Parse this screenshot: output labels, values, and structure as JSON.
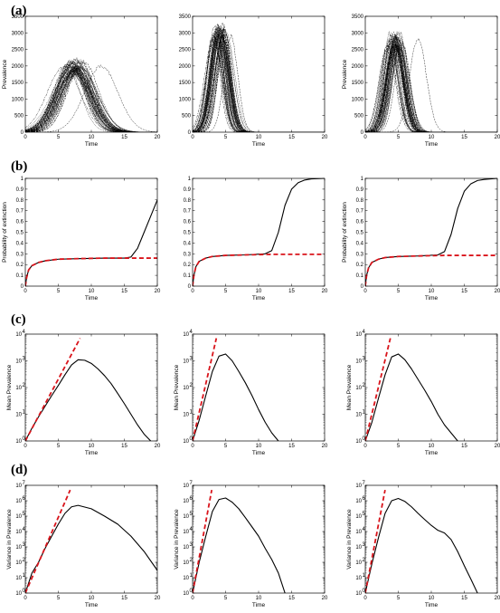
{
  "panel_labels": [
    "(a)",
    "(b)",
    "(c)",
    "(d)"
  ],
  "chart_data": [
    {
      "row": "a",
      "col": 0,
      "type": "line",
      "series_style": "many-realizations",
      "xlabel": "Time",
      "ylabel": "Prevalence",
      "xlim": [
        0,
        20
      ],
      "ylim": [
        0,
        3500
      ],
      "xticks": [
        0,
        5,
        10,
        15,
        20
      ],
      "yticks": [
        0,
        500,
        1000,
        1500,
        2000,
        2500,
        3000,
        3500
      ],
      "ensemble": {
        "peak_time_range": [
          5.5,
          11.5
        ],
        "peak_value_range": [
          1700,
          2200
        ],
        "typical_peak_time": 7.5,
        "typical_peak": 2050,
        "width": 2.4,
        "count": 55
      }
    },
    {
      "row": "a",
      "col": 1,
      "type": "line",
      "series_style": "many-realizations",
      "xlabel": "Time",
      "ylabel": "",
      "xlim": [
        0,
        20
      ],
      "ylim": [
        0,
        3500
      ],
      "xticks": [
        0,
        5,
        10,
        15,
        20
      ],
      "yticks": [
        0,
        500,
        1000,
        1500,
        2000,
        2500,
        3000,
        3500
      ],
      "ensemble": {
        "peak_time_range": [
          2.8,
          5.8
        ],
        "peak_value_range": [
          2700,
          3250
        ],
        "typical_peak_time": 4.0,
        "typical_peak": 3050,
        "width": 1.1,
        "count": 55
      }
    },
    {
      "row": "a",
      "col": 2,
      "type": "line",
      "series_style": "many-realizations",
      "xlabel": "Time",
      "ylabel": "Prevalence",
      "xlim": [
        0,
        20
      ],
      "ylim": [
        0,
        3500
      ],
      "xticks": [
        0,
        5,
        10,
        15,
        20
      ],
      "yticks": [
        0,
        500,
        1000,
        1500,
        2000,
        2500,
        3000,
        3500
      ],
      "ensemble": {
        "peak_time_range": [
          3.0,
          8.0
        ],
        "peak_value_range": [
          2500,
          3000
        ],
        "typical_peak_time": 4.5,
        "typical_peak": 2850,
        "width": 1.2,
        "count": 55
      }
    },
    {
      "row": "b",
      "col": 0,
      "type": "line",
      "xlabel": "Time",
      "ylabel": "Probability of extinction",
      "xlim": [
        0,
        20
      ],
      "ylim": [
        0,
        1
      ],
      "xticks": [
        0,
        5,
        10,
        15,
        20
      ],
      "yticks": [
        0,
        0.1,
        0.2,
        0.3,
        0.4,
        0.5,
        0.6,
        0.7,
        0.8,
        0.9,
        1
      ],
      "series": [
        {
          "style": "solid",
          "x": [
            0,
            0.2,
            0.5,
            1,
            2,
            3,
            5,
            8,
            12,
            15,
            16,
            17,
            18,
            19,
            20
          ],
          "y": [
            0,
            0.08,
            0.15,
            0.19,
            0.22,
            0.235,
            0.25,
            0.255,
            0.26,
            0.26,
            0.27,
            0.35,
            0.5,
            0.65,
            0.8
          ]
        },
        {
          "style": "dashed-red",
          "x": [
            0,
            0.2,
            0.5,
            1,
            2,
            3,
            5,
            8,
            12,
            16,
            20
          ],
          "y": [
            0,
            0.08,
            0.15,
            0.19,
            0.22,
            0.235,
            0.25,
            0.255,
            0.26,
            0.26,
            0.26
          ]
        }
      ]
    },
    {
      "row": "b",
      "col": 1,
      "type": "line",
      "xlabel": "Time",
      "ylabel": "",
      "xlim": [
        0,
        20
      ],
      "ylim": [
        0,
        1
      ],
      "xticks": [
        0,
        5,
        10,
        15,
        20
      ],
      "yticks": [
        0,
        0.1,
        0.2,
        0.3,
        0.4,
        0.5,
        0.6,
        0.7,
        0.8,
        0.9,
        1
      ],
      "series": [
        {
          "style": "solid",
          "x": [
            0,
            0.2,
            0.5,
            1,
            2,
            3,
            5,
            8,
            11,
            12,
            13,
            14,
            15,
            16,
            17,
            18,
            20
          ],
          "y": [
            0,
            0.1,
            0.18,
            0.23,
            0.26,
            0.275,
            0.285,
            0.29,
            0.3,
            0.33,
            0.5,
            0.75,
            0.9,
            0.96,
            0.985,
            0.995,
            1
          ]
        },
        {
          "style": "dashed-red",
          "x": [
            0,
            0.2,
            0.5,
            1,
            2,
            3,
            5,
            8,
            12,
            16,
            20
          ],
          "y": [
            0,
            0.1,
            0.18,
            0.23,
            0.26,
            0.275,
            0.285,
            0.29,
            0.295,
            0.295,
            0.295
          ]
        }
      ]
    },
    {
      "row": "b",
      "col": 2,
      "type": "line",
      "xlabel": "Time",
      "ylabel": "Probability of extinction",
      "xlim": [
        0,
        20
      ],
      "ylim": [
        0,
        1
      ],
      "xticks": [
        0,
        5,
        10,
        15,
        20
      ],
      "yticks": [
        0,
        0.1,
        0.2,
        0.3,
        0.4,
        0.5,
        0.6,
        0.7,
        0.8,
        0.9,
        1
      ],
      "series": [
        {
          "style": "solid",
          "x": [
            0,
            0.2,
            0.5,
            1,
            2,
            3,
            5,
            8,
            11,
            12,
            13,
            14,
            15,
            16,
            17,
            18,
            20
          ],
          "y": [
            0,
            0.1,
            0.17,
            0.22,
            0.25,
            0.265,
            0.275,
            0.28,
            0.29,
            0.32,
            0.48,
            0.72,
            0.88,
            0.95,
            0.98,
            0.99,
            1
          ]
        },
        {
          "style": "dashed-red",
          "x": [
            0,
            0.2,
            0.5,
            1,
            2,
            3,
            5,
            8,
            12,
            16,
            20
          ],
          "y": [
            0,
            0.1,
            0.17,
            0.22,
            0.25,
            0.265,
            0.275,
            0.28,
            0.285,
            0.285,
            0.285
          ]
        }
      ]
    },
    {
      "row": "c",
      "col": 0,
      "type": "line",
      "yscale": "log",
      "xlabel": "Time",
      "ylabel": "Mean Prevalence",
      "xlim": [
        0,
        20
      ],
      "ylim": [
        1,
        10000
      ],
      "xticks": [
        0,
        5,
        10,
        15,
        20
      ],
      "yticks": [
        1,
        10,
        100,
        1000,
        10000
      ],
      "series": [
        {
          "style": "solid",
          "x": [
            0,
            1,
            2,
            3,
            4,
            5,
            6,
            7,
            8,
            9,
            10,
            11,
            12,
            13,
            14,
            15,
            16,
            17,
            18,
            19
          ],
          "y": [
            1,
            3,
            8,
            20,
            50,
            120,
            300,
            700,
            1100,
            1050,
            800,
            500,
            280,
            140,
            60,
            25,
            10,
            4,
            1.8,
            1
          ]
        },
        {
          "style": "dashed-red",
          "x": [
            0,
            8.3
          ],
          "y": [
            1,
            7000
          ]
        }
      ]
    },
    {
      "row": "c",
      "col": 1,
      "type": "line",
      "yscale": "log",
      "xlabel": "Time",
      "ylabel": "Mean Prevalence",
      "xlim": [
        0,
        20
      ],
      "ylim": [
        1,
        10000
      ],
      "xticks": [
        0,
        5,
        10,
        15,
        20
      ],
      "yticks": [
        1,
        10,
        100,
        1000,
        10000
      ],
      "series": [
        {
          "style": "solid",
          "x": [
            0,
            1,
            2,
            3,
            4,
            5,
            6,
            7,
            8,
            9,
            10,
            11,
            12,
            13
          ],
          "y": [
            1,
            6,
            50,
            400,
            1500,
            1800,
            1000,
            400,
            150,
            50,
            15,
            5,
            2,
            1
          ]
        },
        {
          "style": "dashed-red",
          "x": [
            0,
            3.6
          ],
          "y": [
            1,
            7000
          ]
        }
      ]
    },
    {
      "row": "c",
      "col": 2,
      "type": "line",
      "yscale": "log",
      "xlabel": "Time",
      "ylabel": "Mean Prevalence",
      "xlim": [
        0,
        20
      ],
      "ylim": [
        1,
        10000
      ],
      "xticks": [
        0,
        5,
        10,
        15,
        20
      ],
      "yticks": [
        1,
        10,
        100,
        1000,
        10000
      ],
      "series": [
        {
          "style": "solid",
          "x": [
            0,
            1,
            2,
            3,
            4,
            5,
            6,
            7,
            8,
            9,
            10,
            11,
            12,
            13,
            14
          ],
          "y": [
            1,
            5,
            40,
            300,
            1400,
            1800,
            1100,
            500,
            200,
            80,
            30,
            10,
            4,
            2,
            1
          ]
        },
        {
          "style": "dashed-red",
          "x": [
            0,
            3.8
          ],
          "y": [
            1,
            7000
          ]
        }
      ]
    },
    {
      "row": "d",
      "col": 0,
      "type": "line",
      "yscale": "log",
      "xlabel": "Time",
      "ylabel": "Variance in Prevalence",
      "xlim": [
        0,
        20
      ],
      "ylim": [
        1,
        10000000
      ],
      "xticks": [
        0,
        5,
        10,
        15,
        20
      ],
      "yticks": [
        1,
        10,
        100,
        1000,
        10000,
        100000,
        1000000,
        10000000
      ],
      "series": [
        {
          "style": "solid",
          "x": [
            0,
            1,
            2,
            3,
            4,
            5,
            6,
            7,
            8,
            10,
            12,
            14,
            16,
            18,
            20
          ],
          "y": [
            1,
            20,
            100,
            800,
            5000,
            30000,
            150000,
            400000,
            500000,
            300000,
            100000,
            30000,
            5000,
            500,
            30
          ]
        },
        {
          "style": "dashed-red",
          "x": [
            0,
            6.8
          ],
          "y": [
            1,
            5000000
          ]
        }
      ]
    },
    {
      "row": "d",
      "col": 1,
      "type": "line",
      "yscale": "log",
      "xlabel": "Time",
      "ylabel": "Variance in Prevalence",
      "xlim": [
        0,
        20
      ],
      "ylim": [
        1,
        10000000
      ],
      "xticks": [
        0,
        5,
        10,
        15,
        20
      ],
      "yticks": [
        1,
        10,
        100,
        1000,
        10000,
        100000,
        1000000,
        10000000
      ],
      "series": [
        {
          "style": "solid",
          "x": [
            0,
            1,
            2,
            3,
            4,
            5,
            6,
            7,
            8,
            9,
            10,
            11,
            12,
            13,
            14
          ],
          "y": [
            1,
            100,
            5000,
            200000,
            1200000,
            1500000,
            800000,
            300000,
            80000,
            20000,
            5000,
            800,
            150,
            20,
            1
          ]
        },
        {
          "style": "dashed-red",
          "x": [
            0,
            2.9
          ],
          "y": [
            1,
            5000000
          ]
        }
      ]
    },
    {
      "row": "d",
      "col": 2,
      "type": "line",
      "yscale": "log",
      "xlabel": "Time",
      "ylabel": "Variance in Prevalence",
      "xlim": [
        0,
        20
      ],
      "ylim": [
        1,
        10000000
      ],
      "xticks": [
        0,
        5,
        10,
        15,
        20
      ],
      "yticks": [
        1,
        10,
        100,
        1000,
        10000,
        100000,
        1000000,
        10000000
      ],
      "series": [
        {
          "style": "solid",
          "x": [
            0,
            1,
            2,
            3,
            4,
            5,
            6,
            7,
            8,
            9,
            10,
            11,
            12,
            13,
            14,
            15,
            16,
            17
          ],
          "y": [
            1,
            80,
            4000,
            150000,
            1000000,
            1400000,
            900000,
            400000,
            150000,
            60000,
            25000,
            12000,
            8000,
            3000,
            500,
            60,
            8,
            1
          ]
        },
        {
          "style": "dashed-red",
          "x": [
            0,
            3.0
          ],
          "y": [
            1,
            5000000
          ]
        }
      ]
    }
  ]
}
